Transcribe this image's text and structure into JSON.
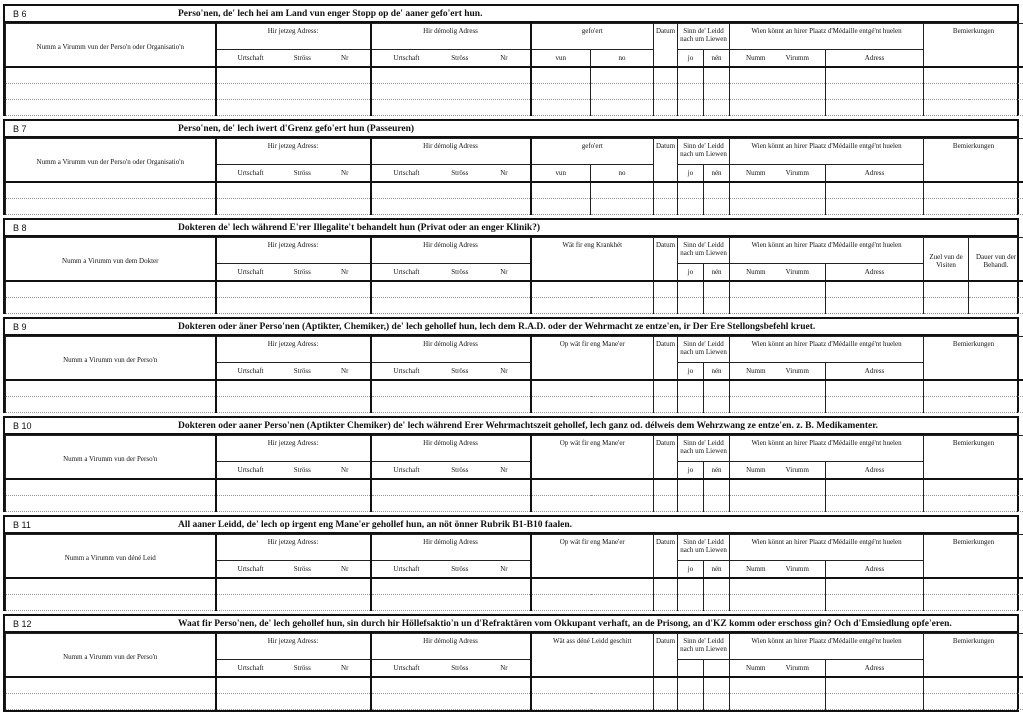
{
  "sections": [
    {
      "id": "B 6",
      "title": "Perso'nen, de' lech hei am Land vun enger Stopp  op de' aaner gefo'ert hun.",
      "name_header": "Numm a Virumm vun der Perso'n oder Organisatio'n",
      "current_address": "Hir jetzeg Adress:",
      "former_address": "Hir démolig Adress",
      "address_parts": [
        "Urtschaft",
        "Ströss",
        "Nr"
      ],
      "col5": {
        "label": "gefo'ert",
        "sub": [
          "vun",
          "no"
        ]
      },
      "date": "Datum",
      "survived": {
        "label": "Sinn de' Leidd nach um Liewen",
        "sub": [
          "jo",
          "nén"
        ]
      },
      "medal": {
        "label": "Wien könnt an hirer Plaatz d'Médaille entgé'nt huelen",
        "sub": [
          "Numm",
          "Virumm",
          "Adress"
        ]
      },
      "last": [
        "Bemierkungen"
      ]
    },
    {
      "id": "B 7",
      "title": "Perso'nen, de' lech iwert d'Grenz gefo'ert hun (Passeuren)",
      "name_header": "Numm a Virumm vun der Perso'n oder Organisatio'n",
      "current_address": "Hir jetzeg Adress:",
      "former_address": "Hir démolig Adress",
      "address_parts": [
        "Urtschaft",
        "Ströss",
        "Nr"
      ],
      "col5": {
        "label": "gefo'ert",
        "sub": [
          "vun",
          "no"
        ]
      },
      "date": "Datum",
      "survived": {
        "label": "Sinn de' Leidd nach um Liewen",
        "sub": [
          "jo",
          "nén"
        ]
      },
      "medal": {
        "label": "Wien könnt an hirer Plaatz d'Médaille entgé'nt huelen",
        "sub": [
          "Numm",
          "Virumm",
          "Adress"
        ]
      },
      "last": [
        "Bemierkungen"
      ]
    },
    {
      "id": "B 8",
      "title": "Dokteren de' lech während E'rer Illegalite't behandelt hun (Privat oder an enger Klinik?)",
      "name_header": "Numm a Virumm vun dem Dokter",
      "current_address": "Hir jetzeg Adress:",
      "former_address": "Hir démolig Adress",
      "address_parts": [
        "Urtschaft",
        "Ströss",
        "Nr"
      ],
      "col5": {
        "label": "Wät fir eng Krankhét",
        "sub": []
      },
      "date": "Datum",
      "survived": {
        "label": "Sinn de' Leidd nach um Liewen",
        "sub": [
          "jo",
          "nén"
        ]
      },
      "medal": {
        "label": "Wien könnt an hirer Plaatz d'Médaille entgé'nt huelen",
        "sub": [
          "Numm",
          "Virumm",
          "Adress"
        ]
      },
      "last": [
        "Zuel vun de Visiten",
        "Dauer vun der Behandl."
      ]
    },
    {
      "id": "B 9",
      "title": "Dokteren oder äner Perso'nen (Aptikter, Chemiker,) de' lech gehollef hun, lech dem R.A.D. oder der Wehrmacht ze entze'en, ir Der Ere Stellongsbefehl kruet.",
      "name_header": "Numm a Virumm vun der Perso'n",
      "current_address": "Hir jetzeg Adress:",
      "former_address": "Hir démolig Adress",
      "address_parts": [
        "Urtschaft",
        "Ströss",
        "Nr"
      ],
      "col5": {
        "label": "Op wät fir eng Mane'er",
        "sub": []
      },
      "date": "Datum",
      "survived": {
        "label": "Sinn de' Leidd nach um Liewen",
        "sub": [
          "jo",
          "nén"
        ]
      },
      "medal": {
        "label": "Wien könnt an hirer Plaatz d'Médaille entgé'nt huelen",
        "sub": [
          "Numm",
          "Virumm",
          "Adress"
        ]
      },
      "last": [
        "Bemierkungen"
      ]
    },
    {
      "id": "B 10",
      "title": "Dokteren oder aaner Perso'nen (Aptikter Chemiker) de' lech während Erer Wehrmachtszeit gehollef, lech ganz od. délweis dem Wehrzwang ze entze'en. z. B. Medikamenter.",
      "name_header": "Numm a Virumm vun der Perso'n",
      "current_address": "Hir jetzeg Adress:",
      "former_address": "Hir démolig Adress",
      "address_parts": [
        "Urtschaft",
        "Ströss",
        "Nr"
      ],
      "col5": {
        "label": "Op wät fir eng Mane'er",
        "sub": []
      },
      "date": "Datum",
      "survived": {
        "label": "Sinn de' Leidd nach um Liewen",
        "sub": [
          "jo",
          "nén"
        ]
      },
      "medal": {
        "label": "Wien könnt an hirer Plaatz d'Médaille entgé'nt huelen",
        "sub": [
          "Numm",
          "Virumm",
          "Adress"
        ]
      },
      "last": [
        "Bemierkungen"
      ]
    },
    {
      "id": "B 11",
      "title": "All aaner Leidd, de' lech op irgent eng Mane'er gehollef hun, an nöt önner Rubrik B1-B10 faalen.",
      "name_header": "Numm a Virumm vun déné Leid",
      "current_address": "Hir jetzeg Adress:",
      "former_address": "Hir démolig Adress",
      "address_parts": [
        "Urtschaft",
        "Ströss",
        "Nr"
      ],
      "col5": {
        "label": "Op wät fir eng Mane'er",
        "sub": []
      },
      "date": "Datum",
      "survived": {
        "label": "Sinn de' Leidd nach um Liewen",
        "sub": [
          "jo",
          "nén"
        ]
      },
      "medal": {
        "label": "Wien könnt an hirer Plaatz d'Médaille entgé'nt huelen",
        "sub": [
          "Numm",
          "Virumm",
          "Adress"
        ]
      },
      "last": [
        "Bemierkungen"
      ]
    },
    {
      "id": "B 12",
      "title": "Waat fir Perso'nen, de' lech gehollef hun, sin durch hir Höllefsaktio'n un d'Refraktären vom Okkupant verhaft, an de Prisong, an d'KZ komm oder  erschoss gin? Och d'Emsiedlung opfe'eren.",
      "name_header": "Numm a Virumm vun der Perso'n",
      "current_address": "Hir jetzeg Adress:",
      "former_address": "Hir démolig Adress",
      "address_parts": [
        "Urtschaft",
        "Ströss",
        "Nr"
      ],
      "col5": {
        "label": "Wät ass déné Leidd geschitt",
        "sub": []
      },
      "date": "Datum",
      "survived": {
        "label": "Sinn de' Leidd nach um Liewen",
        "sub": []
      },
      "medal": {
        "label": "Wien könnt an hirer Plaatz d'Médaille entgé'nt huelen",
        "sub": [
          "Numm",
          "Virumm",
          "Adress"
        ]
      },
      "last": [
        "Bemierkungen"
      ]
    }
  ]
}
